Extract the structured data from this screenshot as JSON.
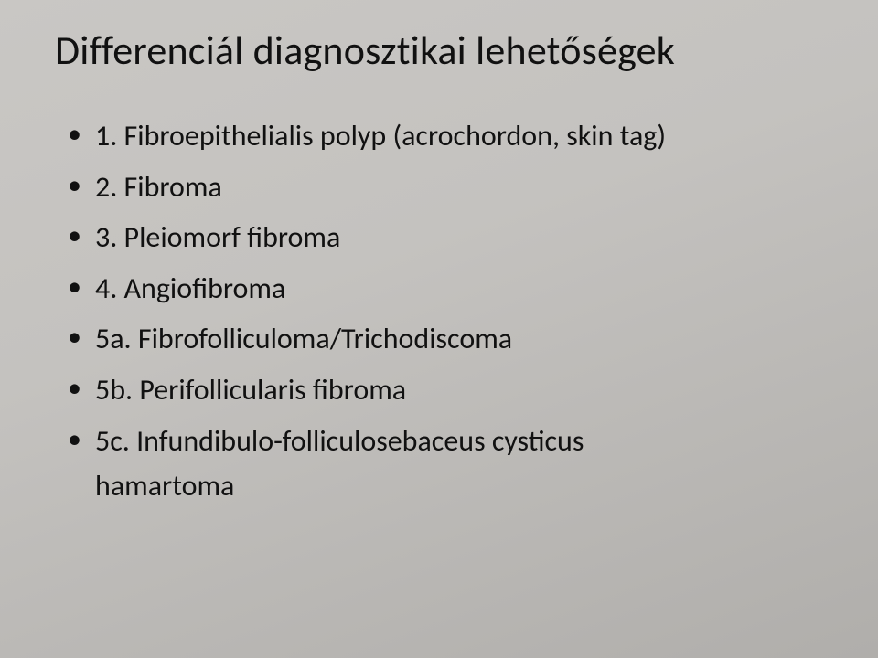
{
  "slide": {
    "background_gradient": [
      "#c9c7c4",
      "#c4c2bf",
      "#bab8b5",
      "#b0aeab"
    ],
    "title_fontsize": 44,
    "body_fontsize": 32,
    "text_color": "#111111",
    "bullet_char": "•",
    "font_family": "Calibri",
    "title": "Differenciál diagnosztikai lehetőségek",
    "items": [
      {
        "text": "1. Fibroepithelialis polyp (acrochordon, skin tag)"
      },
      {
        "text": "2. Fibroma"
      },
      {
        "text": "3. Pleiomorf fibroma"
      },
      {
        "text": "4. Angiofibroma"
      },
      {
        "text": "5a. Fibrofolliculoma/Trichodiscoma"
      },
      {
        "text": "5b. Perifollicularis fibroma"
      },
      {
        "text": "5c. Infundibulo-folliculosebaceus cysticus",
        "cont": "hamartoma"
      }
    ]
  }
}
